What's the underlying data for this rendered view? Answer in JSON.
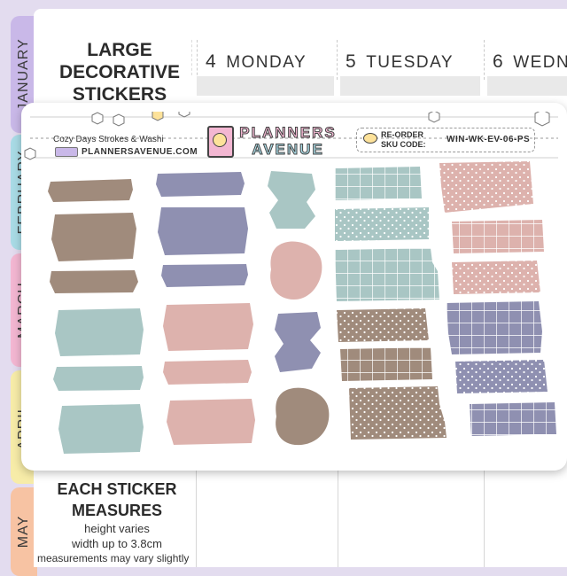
{
  "tabs": [
    {
      "label": "JANUARY",
      "color": "#c9b8e8"
    },
    {
      "label": "FEBRUARY",
      "color": "#a9dbe6"
    },
    {
      "label": "MARCH",
      "color": "#f3b7d2"
    },
    {
      "label": "APRIL",
      "color": "#f7eca8"
    },
    {
      "label": "MAY",
      "color": "#f7c3a3"
    }
  ],
  "header": {
    "line1": "LARGE",
    "line2": "DECORATIVE",
    "line3": "STICKERS"
  },
  "days": [
    {
      "num": "4",
      "name": "MONDAY"
    },
    {
      "num": "5",
      "name": "TUESDAY"
    },
    {
      "num": "6",
      "name": "WEDN"
    }
  ],
  "sheet": {
    "product_name": "Cozy Days Strokes & Washi",
    "website": "PLANNERSAVENUE.COM",
    "brand_line1": "PLANNERS",
    "brand_line2": "AVENUE",
    "reorder_label": "RE-ORDER",
    "sku_label": "SKU CODE:",
    "sku": "WIN-WK-EV-06-PS"
  },
  "footer": {
    "title_line1": "EACH STICKER",
    "title_line2": "MEASURES",
    "line1": "height varies",
    "line2": "width up to 3.8cm",
    "line3": "measurements may vary slightly"
  },
  "colors": {
    "taupe": "#a08b7c",
    "lavender": "#8f90b1",
    "sage": "#a9c6c4",
    "blush": "#ddb2ad",
    "accent_purple": "#9b7fc6"
  }
}
